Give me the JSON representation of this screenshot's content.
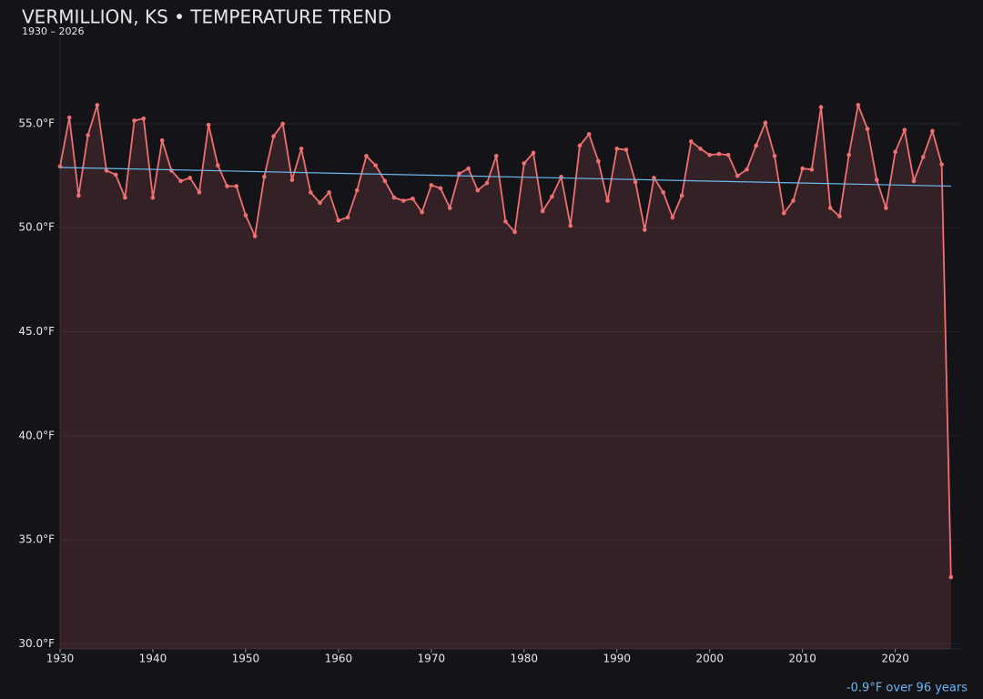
{
  "chart_data": {
    "type": "line",
    "title": "VERMILLION, KS • TEMPERATURE TREND",
    "subtitle": "1930 – 2026",
    "annotation": "-0.9°F over 96 years",
    "x": [
      1930,
      1931,
      1932,
      1933,
      1934,
      1935,
      1936,
      1937,
      1938,
      1939,
      1940,
      1941,
      1942,
      1943,
      1944,
      1945,
      1946,
      1947,
      1948,
      1949,
      1950,
      1951,
      1952,
      1953,
      1954,
      1955,
      1956,
      1957,
      1958,
      1959,
      1960,
      1961,
      1962,
      1963,
      1964,
      1965,
      1966,
      1967,
      1968,
      1969,
      1970,
      1971,
      1972,
      1973,
      1974,
      1975,
      1976,
      1977,
      1978,
      1979,
      1980,
      1981,
      1982,
      1983,
      1984,
      1985,
      1986,
      1987,
      1988,
      1989,
      1990,
      1991,
      1992,
      1993,
      1994,
      1995,
      1996,
      1997,
      1998,
      1999,
      2000,
      2001,
      2002,
      2003,
      2004,
      2005,
      2006,
      2007,
      2008,
      2009,
      2010,
      2011,
      2012,
      2013,
      2014,
      2015,
      2016,
      2017,
      2018,
      2019,
      2020,
      2021,
      2022,
      2023,
      2024,
      2025,
      2026
    ],
    "series": [
      {
        "color": "#f07070",
        "values": [
          52.95,
          55.3,
          51.55,
          54.45,
          55.9,
          52.75,
          52.55,
          51.45,
          55.15,
          55.25,
          51.45,
          54.2,
          52.75,
          52.25,
          52.4,
          51.7,
          54.95,
          53.0,
          52.0,
          52.0,
          50.6,
          49.6,
          52.45,
          54.4,
          55.0,
          52.3,
          53.8,
          51.7,
          51.2,
          51.7,
          50.35,
          50.5,
          51.8,
          53.45,
          53.0,
          52.25,
          51.45,
          51.3,
          51.4,
          50.75,
          52.05,
          51.9,
          50.95,
          52.6,
          52.85,
          51.8,
          52.15,
          53.45,
          50.3,
          49.8,
          53.1,
          53.6,
          50.8,
          51.5,
          52.45,
          50.1,
          53.95,
          54.5,
          53.2,
          51.3,
          53.8,
          53.75,
          52.2,
          49.9,
          52.4,
          51.7,
          50.5,
          51.55,
          54.15,
          53.8,
          53.5,
          53.55,
          53.5,
          52.5,
          52.8,
          53.95,
          55.05,
          53.45,
          50.7,
          51.3,
          52.85,
          52.8,
          55.8,
          50.95,
          50.55,
          53.5,
          55.9,
          54.75,
          52.3,
          50.95,
          53.65,
          54.7,
          52.25,
          53.4,
          54.65,
          53.05,
          33.2
        ]
      }
    ],
    "trend": {
      "color": "#6cb8f0",
      "x": [
        1930,
        2026
      ],
      "values": [
        52.9,
        52.0
      ]
    },
    "xlim": [
      1930,
      2027
    ],
    "ylim": [
      29.75,
      59.2
    ],
    "xticks": [
      1930,
      1940,
      1950,
      1960,
      1970,
      1980,
      1990,
      2000,
      2010,
      2020
    ],
    "yticks": [
      {
        "value": 30,
        "label": "30.0°F"
      },
      {
        "value": 35,
        "label": "35.0°F"
      },
      {
        "value": 40,
        "label": "40.0°F"
      },
      {
        "value": 45,
        "label": "45.0°F"
      },
      {
        "value": 50,
        "label": "50.0°F"
      },
      {
        "value": 55,
        "label": "55.0°F"
      }
    ],
    "grid": true
  }
}
